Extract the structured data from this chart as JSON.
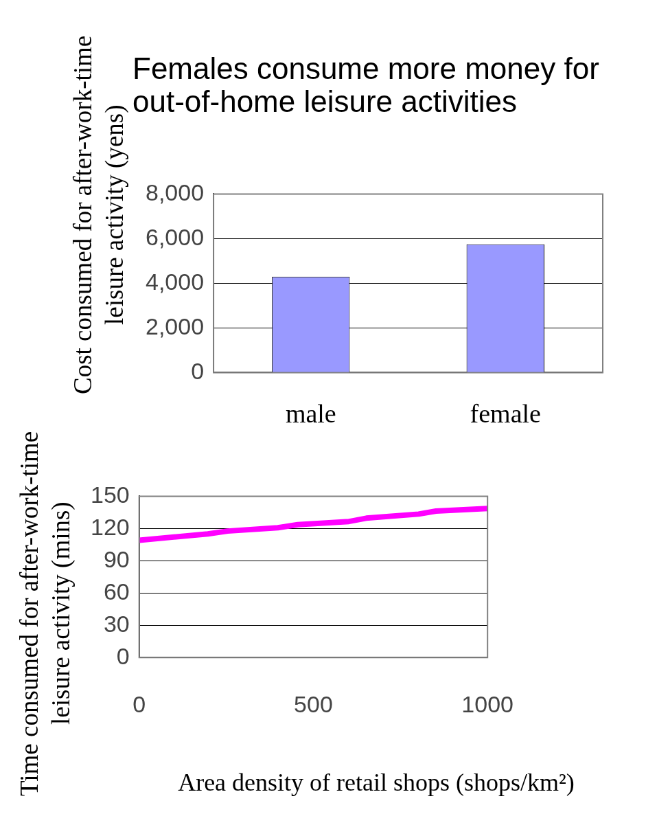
{
  "chart_data": [
    {
      "type": "bar",
      "title": "Females consume more money for out-of-home leisure activities",
      "ylabel": "Cost consumed for after-work-time leisure activity (yens)",
      "categories": [
        "male",
        "female"
      ],
      "values": [
        4300,
        5750
      ],
      "color": "#9999ff",
      "ylim": [
        0,
        8000
      ],
      "yticks": [
        0,
        {
          "value": 2000,
          "label": "2,000"
        },
        {
          "value": 4000,
          "label": "4,000"
        },
        {
          "value": 6000,
          "label": "6,000"
        },
        {
          "value": 8000,
          "label": "8,000"
        }
      ],
      "grid": "y"
    },
    {
      "type": "line",
      "ylabel": "Time consumed for after-work-time leisure activity (mins)",
      "xlabel": "Area density of retail shops (shops/km²)",
      "x": [
        0,
        197,
        254,
        398,
        455,
        602,
        652,
        802,
        852,
        1000
      ],
      "values": [
        109,
        115,
        117.6,
        120.7,
        123.6,
        126.5,
        129.6,
        133.4,
        136.2,
        138.6
      ],
      "color": "#ff00ff",
      "xlim": [
        0,
        1000
      ],
      "xticks": [
        0,
        500,
        1000
      ],
      "ylim": [
        0,
        150
      ],
      "yticks": [
        0,
        30,
        60,
        90,
        120,
        150
      ],
      "grid": "y",
      "marker": "none"
    }
  ]
}
